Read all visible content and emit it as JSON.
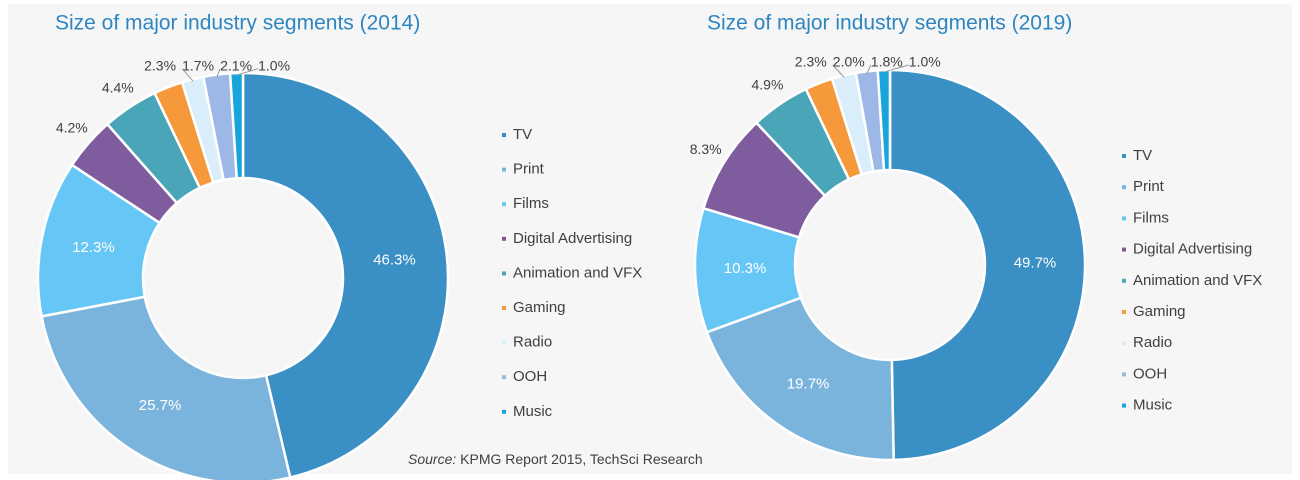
{
  "chart_data": [
    {
      "type": "donut",
      "title": "Size of major industry segments (2014)",
      "categories": [
        "TV",
        "Print",
        "Films",
        "Digital Advertising",
        "Animation and VFX",
        "Gaming",
        "Radio",
        "OOH",
        "Music"
      ],
      "values": [
        46.3,
        25.7,
        12.3,
        4.2,
        4.4,
        2.3,
        1.7,
        2.1,
        1.0
      ],
      "value_labels": [
        "46.3%",
        "25.7%",
        "12.3%",
        "4.2%",
        "4.4%",
        "2.3%",
        "1.7%",
        "2.1%",
        "1.0%"
      ],
      "colors": [
        "#3a8fc4",
        "#7ab3dc",
        "#66c6f5",
        "#7e5c9e",
        "#4aa5b8",
        "#f5993a",
        "#d9eefa",
        "#9db7e6",
        "#1aa4dc"
      ],
      "legend": "right"
    },
    {
      "type": "donut",
      "title": "Size of major industry segments (2019)",
      "categories": [
        "TV",
        "Print",
        "Films",
        "Digital Advertising",
        "Animation and VFX",
        "Gaming",
        "Radio",
        "OOH",
        "Music"
      ],
      "values": [
        49.7,
        19.7,
        10.3,
        8.3,
        4.9,
        2.3,
        2.0,
        1.8,
        1.0
      ],
      "value_labels": [
        "49.7%",
        "19.7%",
        "10.3%",
        "8.3%",
        "4.9%",
        "2.3%",
        "2.0%",
        "1.8%",
        "1.0%"
      ],
      "colors": [
        "#3a8fc4",
        "#7ab3dc",
        "#66c6f5",
        "#7e5c9e",
        "#4aa5b8",
        "#f5993a",
        "#d9eefa",
        "#9db7e6",
        "#1aa4dc"
      ],
      "legend": "right"
    }
  ],
  "source_label": "Source:",
  "source_text": "KPMG Report 2015, TechSci Research"
}
